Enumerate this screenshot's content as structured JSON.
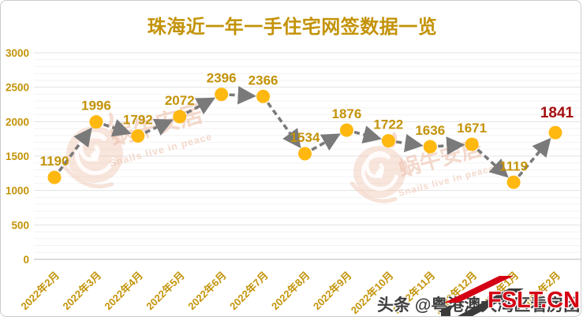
{
  "title": "珠海近一年一手住宅网签数据一览",
  "chart_data": {
    "type": "line",
    "title": "珠海近一年一手住宅网签数据一览",
    "categories": [
      "2022年2月",
      "2022年3月",
      "2022年4月",
      "2022年5月",
      "2022年6月",
      "2022年7月",
      "2022年8月",
      "2022年9月",
      "2022年10月",
      "2022年11月",
      "2022年12月",
      "2023年1月",
      "2023年2月"
    ],
    "values": [
      1190,
      1996,
      1792,
      2072,
      2396,
      2366,
      1534,
      1876,
      1722,
      1636,
      1671,
      1119,
      1841
    ],
    "xlabel": "",
    "ylabel": "",
    "ylim": [
      0,
      3000
    ],
    "yticks": [
      0,
      500,
      1000,
      1500,
      2000,
      2500,
      3000
    ],
    "minor_grid_step": 100,
    "grid": true,
    "legend": false,
    "x_tick_rotation": 45,
    "line_style": "dashed-with-arrows",
    "marker": "circle",
    "data_labels": true,
    "highlighted_point": {
      "category": "2023年2月",
      "value": 1841
    }
  },
  "watermark": {
    "cn": "蜗牛安居",
    "en": "Snails live in peace"
  },
  "footer": {
    "credit": "头条 @粤港澳大湾区看房团",
    "logo_text": "FSLT.CN"
  },
  "colors": {
    "title_gold": "#C39308",
    "label_gold": "#C39308",
    "marker_orange": "#FFB80F",
    "line_gray": "#7A7A7A",
    "grid_minor": "#F3F3F3",
    "grid_major": "#E3E3E3",
    "axis_line": "#C8C8C8",
    "value_highlight_red": "#A40E0E",
    "logo_red": "#D40013",
    "credit_gray": "#3E3E3E",
    "watermark_salmon": "#EEC0AB"
  }
}
